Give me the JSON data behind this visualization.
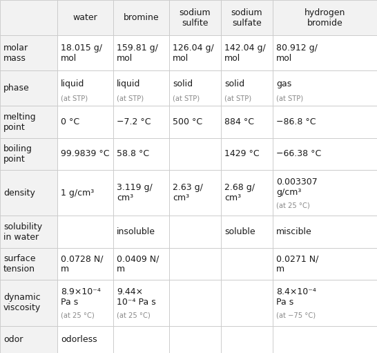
{
  "col_headers": [
    "",
    "water",
    "bromine",
    "sodium\nsulfite",
    "sodium\nsulfate",
    "hydrogen\nbromide"
  ],
  "row_headers": [
    "molar\nmass",
    "phase",
    "melting\npoint",
    "boiling\npoint",
    "density",
    "solubility\nin water",
    "surface\ntension",
    "dynamic\nviscosity",
    "odor"
  ],
  "cells": [
    [
      "18.015 g/\nmol",
      "159.81 g/\nmol",
      "126.04 g/\nmol",
      "142.04 g/\nmol",
      "80.912 g/\nmol"
    ],
    [
      "liquid\n(at STP)",
      "liquid\n(at STP)",
      "solid\n(at STP)",
      "solid\n(at STP)",
      "gas\n(at STP)"
    ],
    [
      "0 °C",
      "−7.2 °C",
      "500 °C",
      "884 °C",
      "−86.8 °C"
    ],
    [
      "99.9839 °C",
      "58.8 °C",
      "",
      "1429 °C",
      "−66.38 °C"
    ],
    [
      "1 g/cm³",
      "3.119 g/\ncm³",
      "2.63 g/\ncm³",
      "2.68 g/\ncm³",
      "0.003307\ng/cm³\n(at 25 °C)"
    ],
    [
      "",
      "insoluble",
      "",
      "soluble",
      "miscible"
    ],
    [
      "0.0728 N/\nm",
      "0.0409 N/\nm",
      "",
      "",
      "0.0271 N/\nm"
    ],
    [
      "8.9×10⁻⁴\nPa s\n(at 25 °C)",
      "9.44×\n10⁻⁴ Pa s\n(at 25 °C)",
      "",
      "",
      "8.4×10⁻⁴\nPa s\n(at −75 °C)"
    ],
    [
      "odorless",
      "",
      "",
      "",
      ""
    ]
  ],
  "small_cells": {
    "4_5": "(at 25 °C)",
    "8_1": "(at 25 °C)",
    "8_2": "(at 25 °C)",
    "8_5": "(at −75 °C)"
  },
  "header_bg": "#f2f2f2",
  "cell_bg": "#ffffff",
  "line_color": "#c8c8c8",
  "text_color": "#1a1a1a",
  "small_text_color": "#888888",
  "font_size": 9.0,
  "small_font_size": 7.2
}
